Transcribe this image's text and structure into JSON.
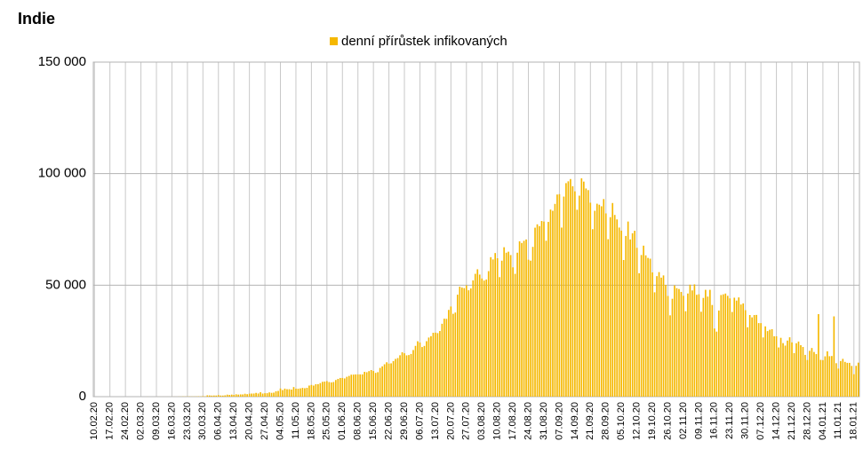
{
  "chart_data": {
    "type": "bar",
    "title": "Indie",
    "categories": [
      "10.02.20",
      null,
      null,
      null,
      null,
      null,
      null,
      "17.02.20",
      null,
      null,
      null,
      null,
      null,
      null,
      "24.02.20",
      null,
      null,
      null,
      null,
      null,
      null,
      "02.03.20",
      null,
      null,
      null,
      null,
      null,
      null,
      "09.03.20",
      null,
      null,
      null,
      null,
      null,
      null,
      "16.03.20",
      null,
      null,
      null,
      null,
      null,
      null,
      "23.03.20",
      null,
      null,
      null,
      null,
      null,
      null,
      "30.03.20",
      null,
      null,
      null,
      null,
      null,
      null,
      "06.04.20",
      null,
      null,
      null,
      null,
      null,
      null,
      "13.04.20",
      null,
      null,
      null,
      null,
      null,
      null,
      "20.04.20",
      null,
      null,
      null,
      null,
      null,
      null,
      "27.04.20",
      null,
      null,
      null,
      null,
      null,
      null,
      "04.05.20",
      null,
      null,
      null,
      null,
      null,
      null,
      "11.05.20",
      null,
      null,
      null,
      null,
      null,
      null,
      "18.05.20",
      null,
      null,
      null,
      null,
      null,
      null,
      "25.05.20",
      null,
      null,
      null,
      null,
      null,
      null,
      "01.06.20",
      null,
      null,
      null,
      null,
      null,
      null,
      "08.06.20",
      null,
      null,
      null,
      null,
      null,
      null,
      "15.06.20",
      null,
      null,
      null,
      null,
      null,
      null,
      "22.06.20",
      null,
      null,
      null,
      null,
      null,
      null,
      "29.06.20",
      null,
      null,
      null,
      null,
      null,
      null,
      "06.07.20",
      null,
      null,
      null,
      null,
      null,
      null,
      "13.07.20",
      null,
      null,
      null,
      null,
      null,
      null,
      "20.07.20",
      null,
      null,
      null,
      null,
      null,
      null,
      "27.07.20",
      null,
      null,
      null,
      null,
      null,
      null,
      "03.08.20",
      null,
      null,
      null,
      null,
      null,
      null,
      "10.08.20",
      null,
      null,
      null,
      null,
      null,
      null,
      "17.08.20",
      null,
      null,
      null,
      null,
      null,
      null,
      "24.08.20",
      null,
      null,
      null,
      null,
      null,
      null,
      "31.08.20",
      null,
      null,
      null,
      null,
      null,
      null,
      "07.09.20",
      null,
      null,
      null,
      null,
      null,
      null,
      "14.09.20",
      null,
      null,
      null,
      null,
      null,
      null,
      "21.09.20",
      null,
      null,
      null,
      null,
      null,
      null,
      "28.09.20",
      null,
      null,
      null,
      null,
      null,
      null,
      "05.10.20",
      null,
      null,
      null,
      null,
      null,
      null,
      "12.10.20",
      null,
      null,
      null,
      null,
      null,
      null,
      "19.10.20",
      null,
      null,
      null,
      null,
      null,
      null,
      "26.10.20",
      null,
      null,
      null,
      null,
      null,
      null,
      "02.11.20",
      null,
      null,
      null,
      null,
      null,
      null,
      "09.11.20",
      null,
      null,
      null,
      null,
      null,
      null,
      "16.11.20",
      null,
      null,
      null,
      null,
      null,
      null,
      "23.11.20",
      null,
      null,
      null,
      null,
      null,
      null,
      "30.11.20",
      null,
      null,
      null,
      null,
      null,
      null,
      "07.12.20",
      null,
      null,
      null,
      null,
      null,
      null,
      "14.12.20",
      null,
      null,
      null,
      null,
      null,
      null,
      "21.12.20",
      null,
      null,
      null,
      null,
      null,
      null,
      "28.12.20",
      null,
      null,
      null,
      null,
      null,
      null,
      "04.01.21",
      null,
      null,
      null,
      null,
      null,
      null,
      "11.01.21",
      null,
      null,
      null,
      null,
      null,
      null,
      "18.01.21",
      null,
      null
    ],
    "series": [
      {
        "name": "denní přírůstek infikovaných",
        "color": "#f5b800",
        "values": [
          0,
          0,
          0,
          0,
          0,
          0,
          0,
          0,
          0,
          0,
          0,
          0,
          0,
          0,
          0,
          0,
          0,
          0,
          0,
          0,
          0,
          2,
          0,
          0,
          22,
          2,
          1,
          3,
          5,
          16,
          10,
          11,
          7,
          15,
          8,
          13,
          23,
          14,
          38,
          50,
          86,
          73,
          84,
          100,
          74,
          86,
          88,
          149,
          106,
          227,
          146,
          601,
          545,
          478,
          515,
          505,
          704,
          508,
          485,
          591,
          896,
          768,
          918,
          796,
          1061,
          922,
          1008,
          1007,
          1295,
          1108,
          1335,
          1383,
          1409,
          1684,
          1429,
          1990,
          1396,
          1543,
          1568,
          1902,
          1705,
          1801,
          2396,
          2564,
          3656,
          2971,
          3602,
          3344,
          3339,
          3175,
          4311,
          3592,
          3562,
          3726,
          3941,
          3787,
          3970,
          4987,
          5242,
          4970,
          5611,
          5609,
          6088,
          6654,
          6767,
          6977,
          6535,
          6387,
          6566,
          7466,
          7964,
          8380,
          8392,
          8171,
          8909,
          9304,
          9851,
          9887,
          9971,
          9983,
          9987,
          9985,
          11128,
          10956,
          11458,
          11929,
          11502,
          10667,
          10974,
          12881,
          13586,
          14516,
          15413,
          14821,
          14933,
          15968,
          16922,
          17296,
          18552,
          19906,
          19459,
          18522,
          18653,
          19148,
          20903,
          22771,
          24850,
          24248,
          22252,
          22752,
          24879,
          26506,
          27114,
          28637,
          28701,
          28498,
          29429,
          32695,
          34956,
          34884,
          38902,
          40425,
          37148,
          37724,
          45720,
          49310,
          48916,
          48661,
          49931,
          47703,
          48513,
          52123,
          55078,
          57118,
          54735,
          52972,
          52050,
          52509,
          56282,
          62538,
          61537,
          64399,
          62064,
          53601,
          60963,
          66999,
          64553,
          65002,
          63490,
          57981,
          55079,
          64531,
          69652,
          68898,
          69878,
          70488,
          61408,
          60975,
          67151,
          75760,
          77266,
          76472,
          78761,
          78512,
          69921,
          78357,
          83883,
          83341,
          86432,
          90632,
          90802,
          75809,
          89706,
          95735,
          96551,
          97570,
          94372,
          92071,
          83809,
          90123,
          97894,
          96424,
          93337,
          92605,
          86961,
          75083,
          83347,
          86508,
          86052,
          85362,
          88600,
          82170,
          70589,
          80472,
          86821,
          81484,
          79476,
          75829,
          74442,
          61267,
          72049,
          78524,
          70496,
          73272,
          74383,
          66732,
          55342,
          63509,
          67708,
          63371,
          62212,
          61871,
          55722,
          46790,
          54044,
          55839,
          53370,
          54366,
          50129,
          45148,
          36469,
          43893,
          49881,
          48648,
          48268,
          46963,
          45231,
          38310,
          46253,
          50210,
          47638,
          50356,
          45674,
          45903,
          38073,
          44281,
          47905,
          44879,
          47905,
          41100,
          30548,
          29163,
          38617,
          45576,
          45882,
          46232,
          45209,
          44059,
          37975,
          44376,
          43082,
          44489,
          41322,
          41810,
          38772,
          31118,
          36604,
          35551,
          36595,
          36652,
          32981,
          32981,
          26567,
          31521,
          29398,
          30006,
          30254,
          27071,
          27071,
          22065,
          26382,
          24010,
          22890,
          25152,
          26624,
          24337,
          19556,
          23950,
          24712,
          23067,
          22273,
          18732,
          16432,
          20549,
          21821,
          20035,
          19079,
          37000,
          16504,
          16375,
          18088,
          20346,
          18139,
          18222,
          36000,
          15000,
          12584,
          15968,
          16946,
          15590,
          15158,
          15144,
          13788,
          10064,
          13823,
          15244
        ]
      }
    ],
    "ylim": [
      0,
      150000
    ],
    "yticks": [
      0,
      {
        "value": 50000,
        "label": "50 000"
      },
      {
        "value": 100000,
        "label": "100 000"
      },
      {
        "value": 150000,
        "label": "150 000"
      }
    ],
    "grid": true,
    "legend": "top"
  }
}
